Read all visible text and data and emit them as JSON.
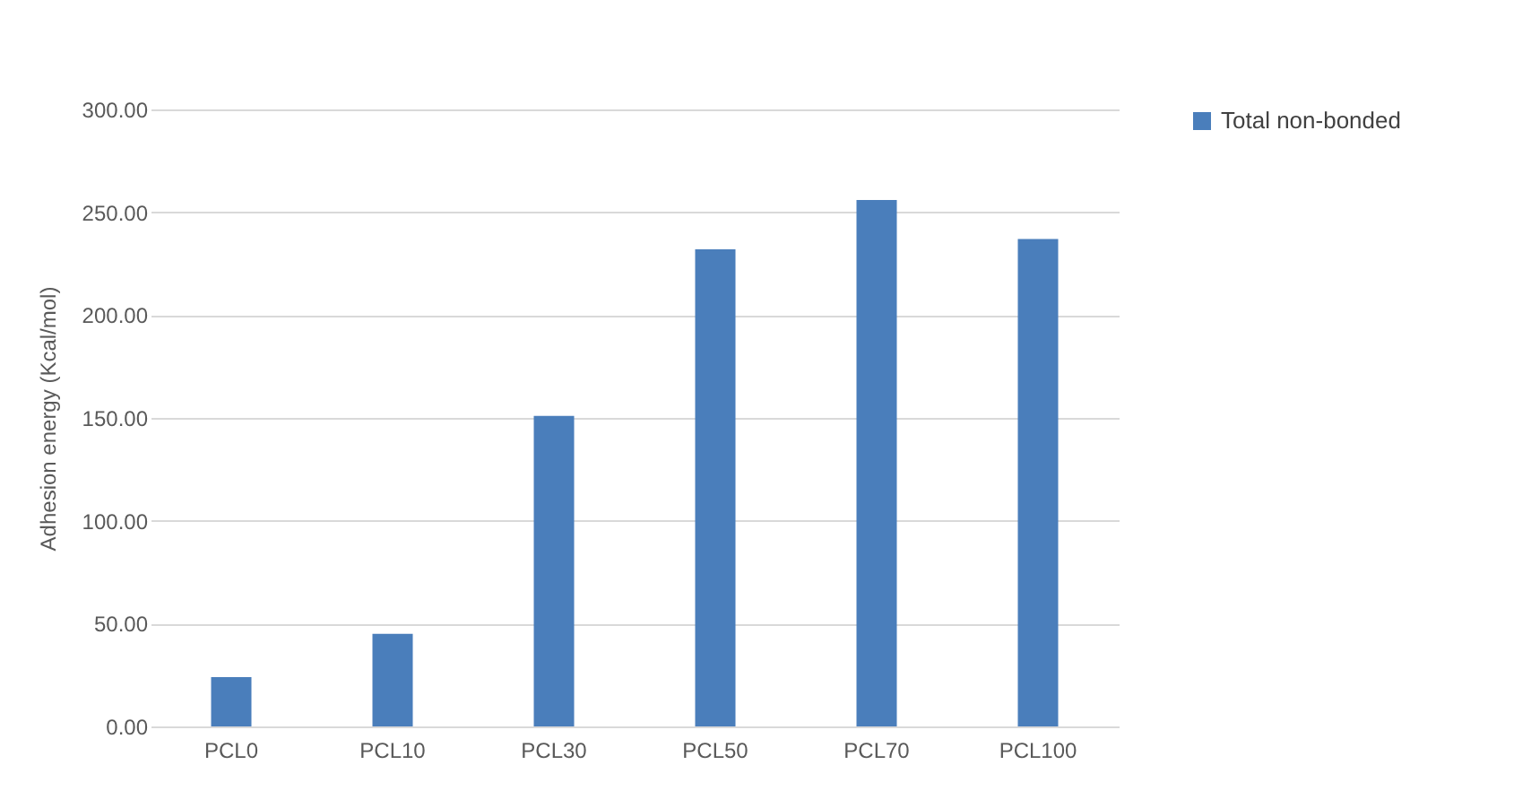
{
  "chart_data": {
    "type": "bar",
    "ylabel": "Adhesion energy (Kcal/mol)",
    "categories": [
      "PCL0",
      "PCL10",
      "PCL30",
      "PCL50",
      "PCL70",
      "PCL100"
    ],
    "series": [
      {
        "name": "Total non-bonded",
        "color": "#4a7ebb",
        "values": [
          24,
          45,
          151,
          232,
          256,
          237
        ]
      }
    ],
    "ylim": [
      0,
      300
    ],
    "yticks": [
      {
        "value": 0,
        "label": "0.00"
      },
      {
        "value": 50,
        "label": "50.00"
      },
      {
        "value": 100,
        "label": "100.00"
      },
      {
        "value": 150,
        "label": "150.00"
      },
      {
        "value": 200,
        "label": "200.00"
      },
      {
        "value": 250,
        "label": "250.00"
      },
      {
        "value": 300,
        "label": "300.00"
      }
    ],
    "grid": "y",
    "legend": "right"
  }
}
